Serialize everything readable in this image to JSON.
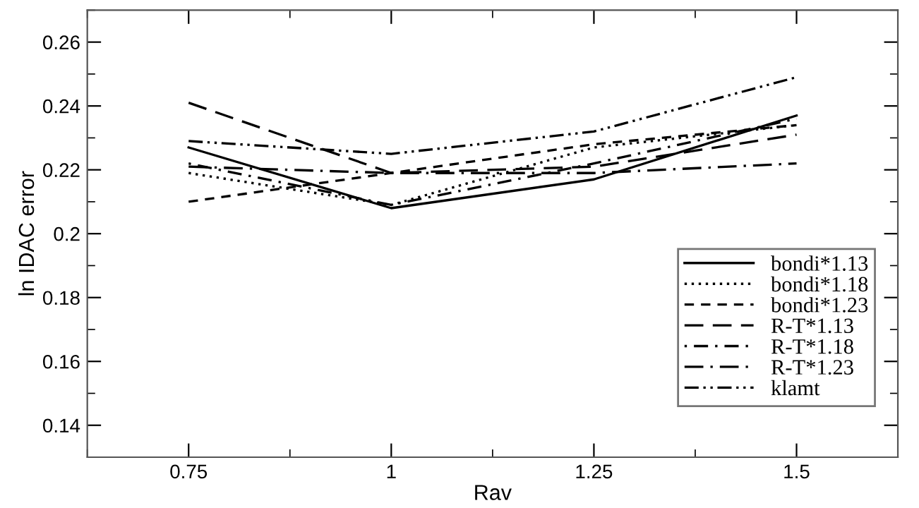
{
  "chart_data": {
    "type": "line",
    "xlabel": "Rav",
    "ylabel": "ln IDAC error",
    "x": [
      0.75,
      1,
      1.25,
      1.5
    ],
    "xlim": [
      0.625,
      1.625
    ],
    "xticks": [
      0.75,
      1,
      1.25,
      1.5
    ],
    "ylim": [
      0.13,
      0.27
    ],
    "yticks": [
      0.14,
      0.16,
      0.18,
      0.2,
      0.22,
      0.24,
      0.26
    ],
    "grid": false,
    "legend": "bottom right",
    "marker": "none",
    "series": [
      {
        "name": "bondi*1.13",
        "color": "#000000",
        "line_style": "solid",
        "values": [
          0.227,
          0.208,
          0.217,
          0.237
        ]
      },
      {
        "name": "bondi*1.18",
        "color": "#000000",
        "line_style": "dotted",
        "values": [
          0.219,
          0.209,
          0.227,
          0.234
        ]
      },
      {
        "name": "bondi*1.23",
        "color": "#000000",
        "line_style": "dashed",
        "values": [
          0.21,
          0.219,
          0.228,
          0.234
        ]
      },
      {
        "name": "R-T*1.13",
        "color": "#000000",
        "line_style": "longdashed",
        "values": [
          0.241,
          0.219,
          0.221,
          0.231
        ]
      },
      {
        "name": "R-T*1.18",
        "color": "#000000",
        "line_style": "dashdot",
        "values": [
          0.222,
          0.209,
          0.222,
          0.236
        ]
      },
      {
        "name": "R-T*1.23",
        "color": "#000000",
        "line_style": "longdashdot",
        "values": [
          0.221,
          0.219,
          0.219,
          0.222
        ]
      },
      {
        "name": "klamt",
        "color": "#000000",
        "line_style": "dashdotdot",
        "values": [
          0.229,
          0.225,
          0.232,
          0.249
        ]
      }
    ]
  }
}
